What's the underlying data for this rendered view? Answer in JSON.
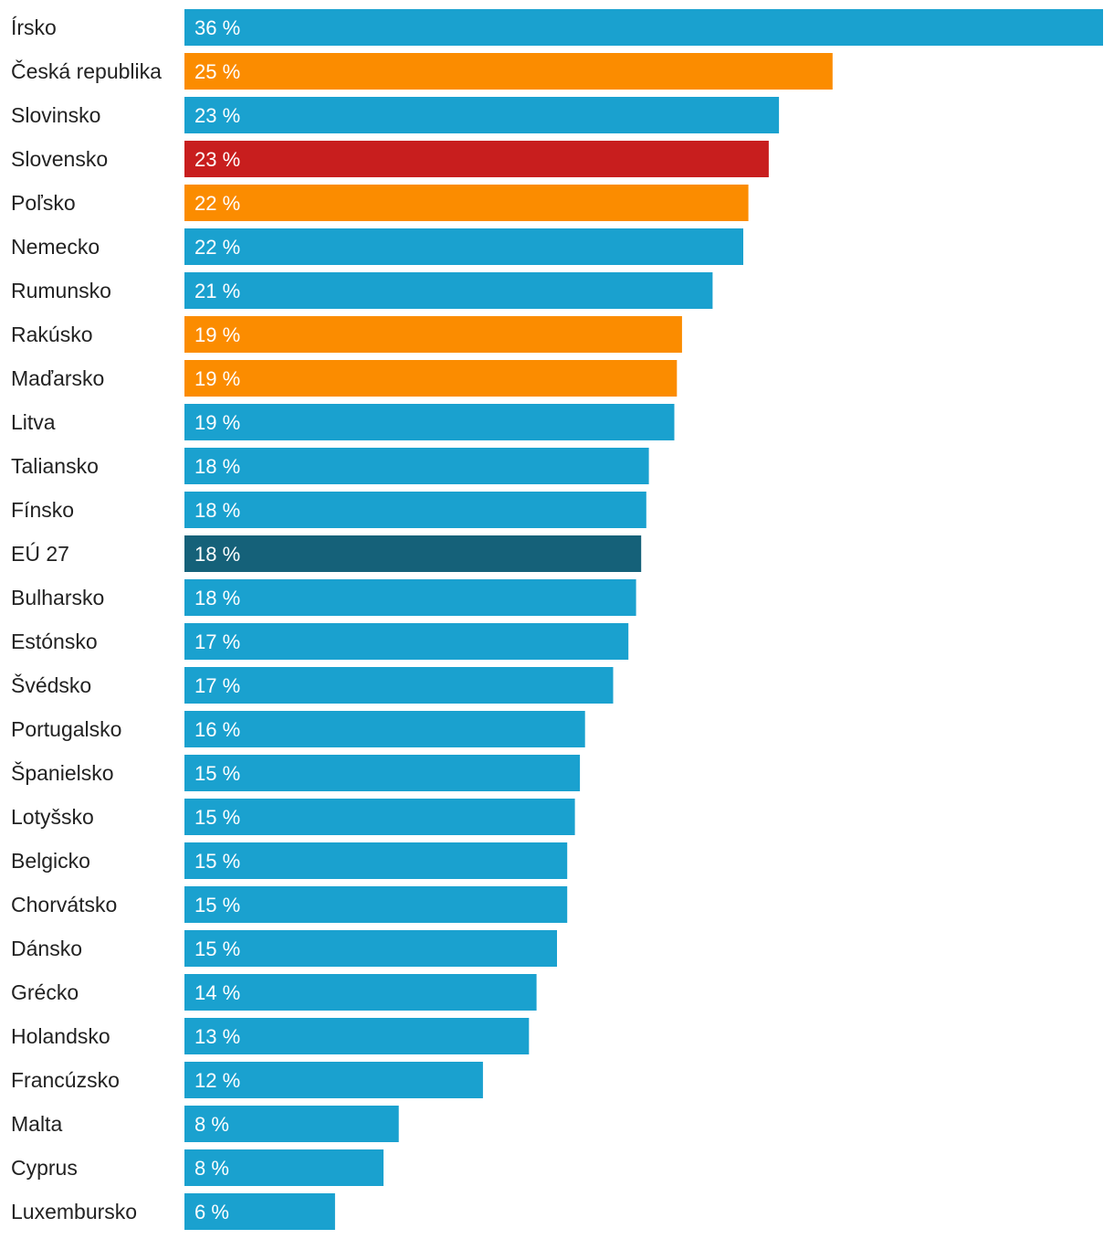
{
  "chart_data": {
    "type": "bar",
    "orientation": "horizontal",
    "title": "",
    "xlabel": "",
    "ylabel": "",
    "unit": "%",
    "xlim": [
      0,
      36
    ],
    "categories": [
      "Írsko",
      "Česká republika",
      "Slovinsko",
      "Slovensko",
      "Poľsko",
      "Nemecko",
      "Rumunsko",
      "Rakúsko",
      "Maďarsko",
      "Litva",
      "Taliansko",
      "Fínsko",
      "EÚ 27",
      "Bulharsko",
      "Estónsko",
      "Švédsko",
      "Portugalsko",
      "Španielsko",
      "Lotyšsko",
      "Belgicko",
      "Chorvátsko",
      "Dánsko",
      "Grécko",
      "Holandsko",
      "Francúzsko",
      "Malta",
      "Cyprus",
      "Luxembursko"
    ],
    "values": [
      36,
      25.4,
      23.3,
      22.9,
      22.1,
      21.9,
      20.7,
      19.5,
      19.3,
      19.2,
      18.2,
      18.1,
      17.9,
      17.7,
      17.4,
      16.8,
      15.7,
      15.5,
      15.3,
      15.0,
      15.0,
      14.6,
      13.8,
      13.5,
      11.7,
      8.4,
      7.8,
      5.9
    ],
    "labels": [
      "36 %",
      "25 %",
      "23 %",
      "23 %",
      "22 %",
      "22 %",
      "21 %",
      "19 %",
      "19 %",
      "19 %",
      "18 %",
      "18 %",
      "18 %",
      "18 %",
      "17 %",
      "17 %",
      "16 %",
      "15 %",
      "15 %",
      "15 %",
      "15 %",
      "15 %",
      "14 %",
      "13 %",
      "12 %",
      "8 %",
      "8 %",
      "6 %"
    ],
    "bar_colors": [
      "#1aa1cf",
      "#fb8c00",
      "#1aa1cf",
      "#c81e1e",
      "#fb8c00",
      "#1aa1cf",
      "#1aa1cf",
      "#fb8c00",
      "#fb8c00",
      "#1aa1cf",
      "#1aa1cf",
      "#1aa1cf",
      "#156179",
      "#1aa1cf",
      "#1aa1cf",
      "#1aa1cf",
      "#1aa1cf",
      "#1aa1cf",
      "#1aa1cf",
      "#1aa1cf",
      "#1aa1cf",
      "#1aa1cf",
      "#1aa1cf",
      "#1aa1cf",
      "#1aa1cf",
      "#1aa1cf",
      "#1aa1cf",
      "#1aa1cf"
    ]
  },
  "colors": {
    "default": "#1aa1cf",
    "highlight_neighbor": "#fb8c00",
    "highlight_slovakia": "#c81e1e",
    "eu_average": "#156179",
    "text": "#222222"
  }
}
